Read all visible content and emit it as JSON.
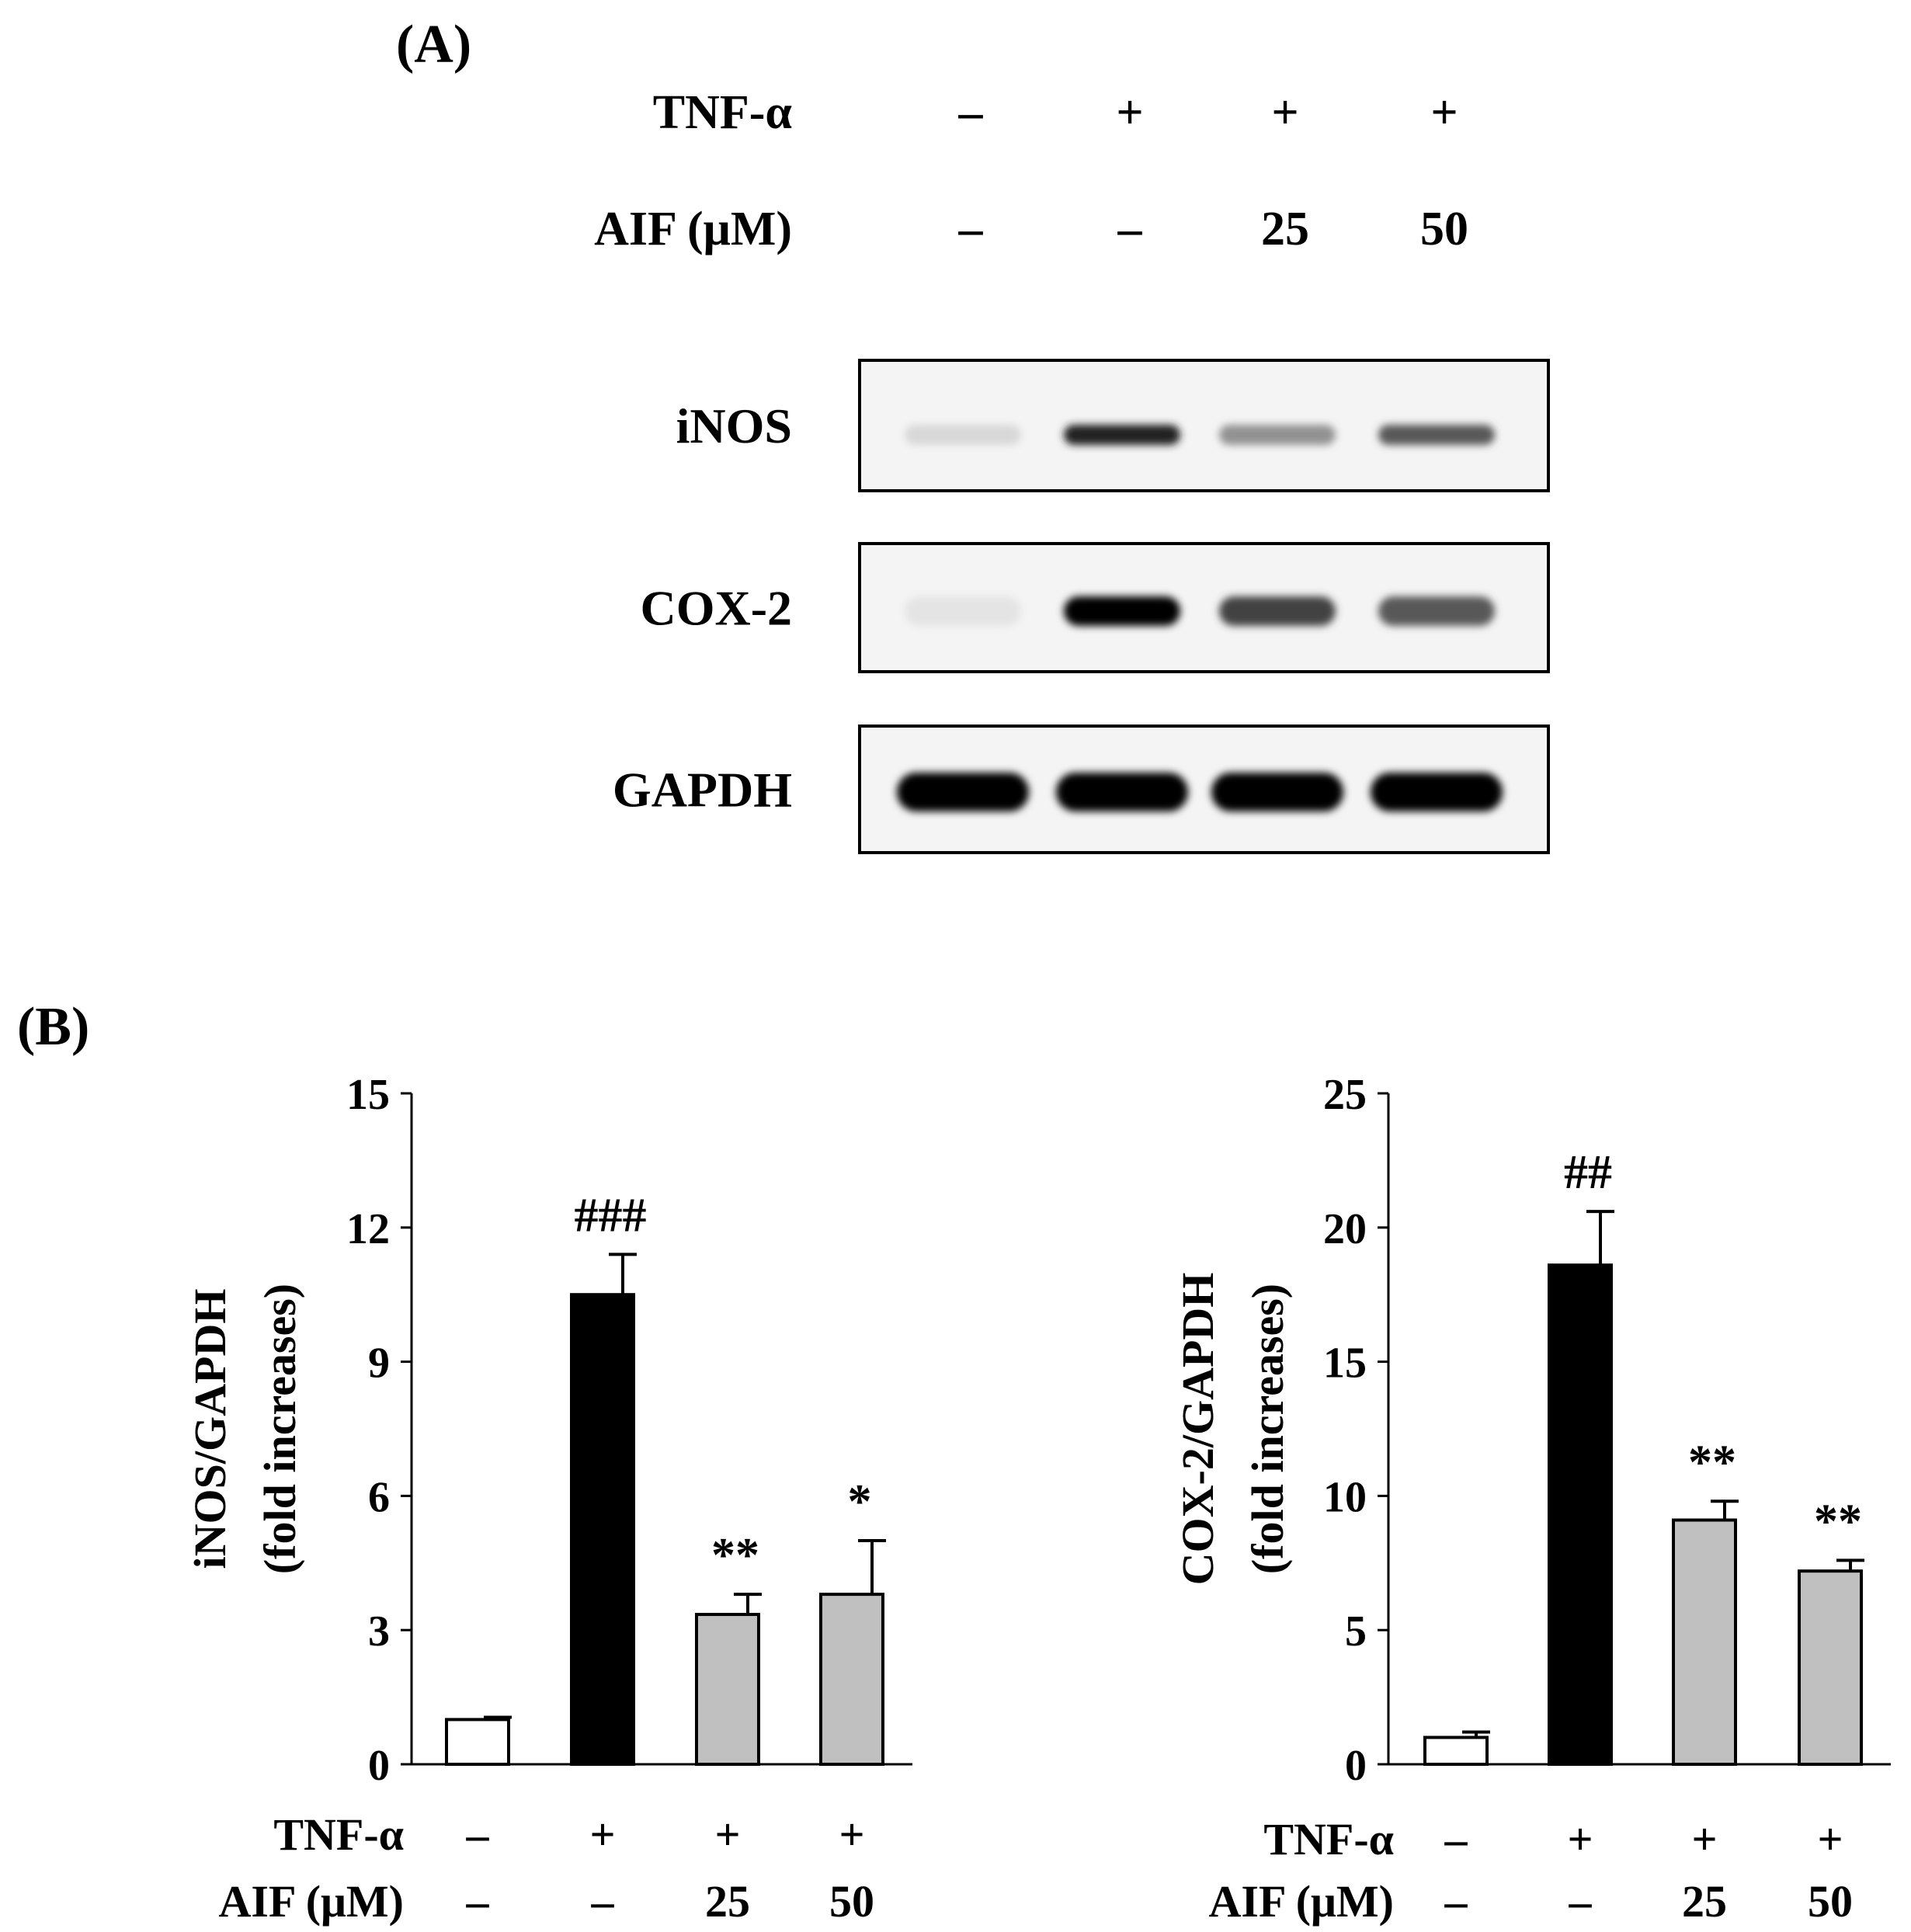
{
  "panel_a": {
    "label": "(A)",
    "condition_rows": [
      {
        "label": "TNF-α",
        "values": [
          "–",
          "+",
          "+",
          "+"
        ]
      },
      {
        "label": "AIF (μM)",
        "values": [
          "–",
          "–",
          "25",
          "50"
        ]
      }
    ],
    "blots": [
      {
        "name": "iNOS",
        "band_intensity": [
          0.08,
          0.85,
          0.38,
          0.62
        ]
      },
      {
        "name": "COX-2",
        "band_intensity": [
          0.03,
          1.0,
          0.72,
          0.62
        ]
      },
      {
        "name": "GAPDH",
        "band_intensity": [
          1.0,
          1.0,
          1.0,
          1.0
        ]
      }
    ]
  },
  "panel_b_label": "(B)",
  "chart_data": [
    {
      "type": "bar",
      "ylabel": [
        "iNOS/GAPDH",
        "(fold increases)"
      ],
      "ylim": [
        0,
        15
      ],
      "yticks": [
        0,
        3,
        6,
        9,
        12,
        15
      ],
      "values": [
        1.0,
        10.5,
        3.35,
        3.8
      ],
      "errors": [
        0.05,
        0.9,
        0.45,
        1.2
      ],
      "annotations": [
        "",
        "###",
        "**",
        "*"
      ],
      "bar_colors": [
        "#ffffff",
        "#000000",
        "#c0c0c0",
        "#c0c0c0"
      ],
      "conditions": [
        {
          "label": "TNF-α",
          "values": [
            "–",
            "+",
            "+",
            "+"
          ]
        },
        {
          "label": "AIF (μM)",
          "values": [
            "–",
            "–",
            "25",
            "50"
          ]
        }
      ]
    },
    {
      "type": "bar",
      "ylabel": [
        "COX-2/GAPDH",
        "(fold increases)"
      ],
      "ylim": [
        0,
        25
      ],
      "yticks": [
        0,
        5,
        10,
        15,
        20,
        25
      ],
      "values": [
        1.0,
        18.6,
        9.1,
        7.2
      ],
      "errors": [
        0.2,
        2.0,
        0.7,
        0.4
      ],
      "annotations": [
        "",
        "##",
        "**",
        "**"
      ],
      "bar_colors": [
        "#ffffff",
        "#000000",
        "#c0c0c0",
        "#c0c0c0"
      ],
      "conditions": [
        {
          "label": "TNF-α",
          "values": [
            "–",
            "+",
            "+",
            "+"
          ]
        },
        {
          "label": "AIF (μM)",
          "values": [
            "–",
            "–",
            "25",
            "50"
          ]
        }
      ]
    }
  ]
}
